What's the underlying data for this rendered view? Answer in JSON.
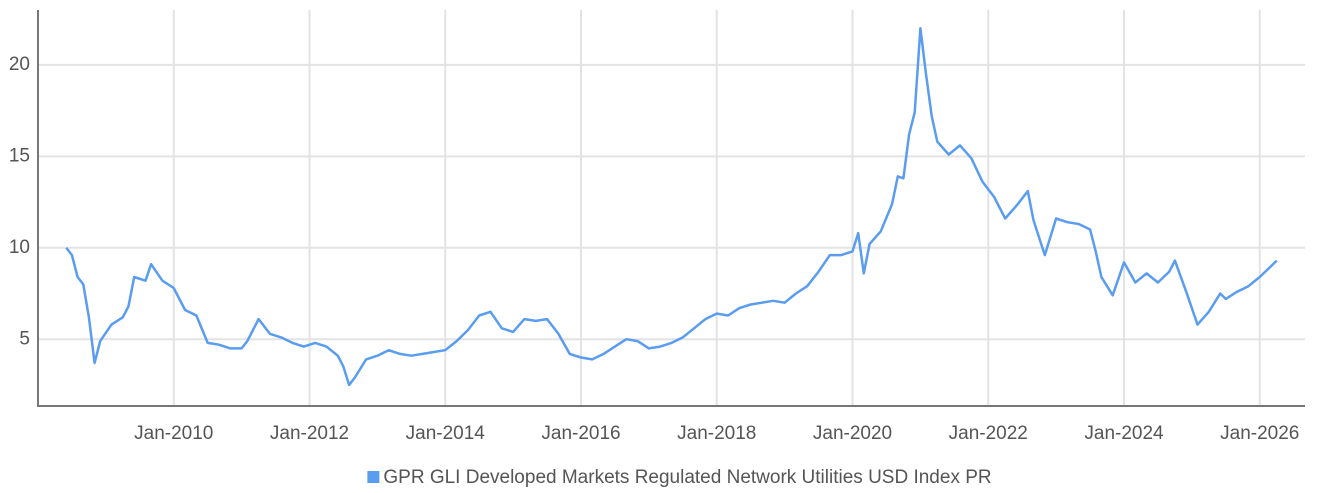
{
  "chart_data": {
    "type": "line",
    "x": [
      "2008-06",
      "2008-07",
      "2008-08",
      "2008-09",
      "2008-10",
      "2008-11",
      "2008-12",
      "2009-02",
      "2009-04",
      "2009-05",
      "2009-06",
      "2009-08",
      "2009-09",
      "2009-11",
      "2010-01",
      "2010-03",
      "2010-05",
      "2010-07",
      "2010-09",
      "2010-11",
      "2011-01",
      "2011-02",
      "2011-04",
      "2011-06",
      "2011-08",
      "2011-10",
      "2011-12",
      "2012-02",
      "2012-04",
      "2012-06",
      "2012-07",
      "2012-08",
      "2012-09",
      "2012-11",
      "2013-01",
      "2013-03",
      "2013-05",
      "2013-07",
      "2013-09",
      "2013-11",
      "2014-01",
      "2014-03",
      "2014-05",
      "2014-07",
      "2014-09",
      "2014-11",
      "2015-01",
      "2015-03",
      "2015-05",
      "2015-07",
      "2015-09",
      "2015-11",
      "2016-01",
      "2016-03",
      "2016-05",
      "2016-07",
      "2016-09",
      "2016-11",
      "2017-01",
      "2017-03",
      "2017-05",
      "2017-07",
      "2017-09",
      "2017-11",
      "2018-01",
      "2018-03",
      "2018-05",
      "2018-07",
      "2018-09",
      "2018-11",
      "2019-01",
      "2019-03",
      "2019-05",
      "2019-07",
      "2019-09",
      "2019-11",
      "2020-01",
      "2020-02",
      "2020-03",
      "2020-04",
      "2020-06",
      "2020-08",
      "2020-09",
      "2020-10",
      "2020-11",
      "2020-12",
      "2021-01",
      "2021-02",
      "2021-03",
      "2021-04",
      "2021-06",
      "2021-08",
      "2021-10",
      "2021-12",
      "2022-02",
      "2022-04",
      "2022-06",
      "2022-08",
      "2022-09",
      "2022-11",
      "2023-01",
      "2023-03",
      "2023-05",
      "2023-07",
      "2023-08",
      "2023-09",
      "2023-11",
      "2024-01",
      "2024-03",
      "2024-05",
      "2024-07",
      "2024-09",
      "2024-10",
      "2024-12",
      "2025-02",
      "2025-04",
      "2025-06",
      "2025-07",
      "2025-09",
      "2025-11",
      "2026-01",
      "2026-03",
      "2026-04"
    ],
    "series": [
      {
        "name": "GPR GLI Developed Markets Regulated Network Utilities USD Index PR",
        "color": "#5a9cf0",
        "values": [
          10.0,
          9.6,
          8.4,
          8.0,
          6.2,
          3.7,
          4.9,
          5.8,
          6.2,
          6.8,
          8.4,
          8.2,
          9.1,
          8.2,
          7.8,
          6.6,
          6.3,
          4.8,
          4.7,
          4.5,
          4.5,
          4.9,
          6.1,
          5.3,
          5.1,
          4.8,
          4.6,
          4.8,
          4.6,
          4.1,
          3.5,
          2.5,
          2.9,
          3.9,
          4.1,
          4.4,
          4.2,
          4.1,
          4.2,
          4.3,
          4.4,
          4.9,
          5.5,
          6.3,
          6.5,
          5.6,
          5.4,
          6.1,
          6.0,
          6.1,
          5.3,
          4.2,
          4.0,
          3.9,
          4.2,
          4.6,
          5.0,
          4.9,
          4.5,
          4.6,
          4.8,
          5.1,
          5.6,
          6.1,
          6.4,
          6.3,
          6.7,
          6.9,
          7.0,
          7.1,
          7.0,
          7.5,
          7.9,
          8.7,
          9.6,
          9.6,
          9.8,
          10.8,
          8.6,
          10.2,
          10.9,
          12.4,
          13.9,
          13.8,
          16.2,
          17.4,
          22.0,
          19.5,
          17.2,
          15.8,
          15.1,
          15.6,
          14.9,
          13.6,
          12.8,
          11.6,
          12.3,
          13.1,
          11.5,
          9.6,
          11.6,
          11.4,
          11.3,
          11.0,
          9.8,
          8.4,
          7.4,
          9.2,
          8.1,
          8.6,
          8.1,
          8.7,
          9.3,
          7.6,
          5.8,
          6.5,
          7.5,
          7.2,
          7.6,
          7.9,
          8.4,
          9.0,
          9.3
        ]
      }
    ],
    "xlim": [
      "2008-01",
      "2026-09"
    ],
    "xticks": [
      {
        "value": "2010-01",
        "label": "Jan-2010"
      },
      {
        "value": "2012-01",
        "label": "Jan-2012"
      },
      {
        "value": "2014-01",
        "label": "Jan-2014"
      },
      {
        "value": "2016-01",
        "label": "Jan-2016"
      },
      {
        "value": "2018-01",
        "label": "Jan-2018"
      },
      {
        "value": "2020-01",
        "label": "Jan-2020"
      },
      {
        "value": "2022-01",
        "label": "Jan-2022"
      },
      {
        "value": "2024-01",
        "label": "Jan-2024"
      },
      {
        "value": "2026-01",
        "label": "Jan-2026"
      }
    ],
    "ylim": [
      1.35,
      23
    ],
    "yticks": [
      5,
      10,
      15,
      20
    ],
    "grid": true,
    "legend": "bottom"
  }
}
